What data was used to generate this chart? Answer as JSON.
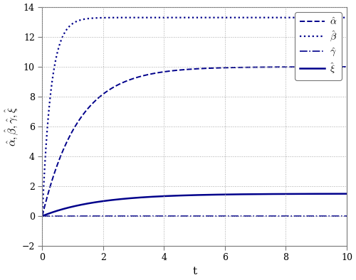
{
  "title": "",
  "xlabel": "t",
  "ylabel": "$\\hat{\\alpha}, \\hat{\\beta}, \\hat{\\gamma}, \\hat{\\xi}$",
  "xlim": [
    0,
    10
  ],
  "ylim": [
    -2,
    14
  ],
  "yticks": [
    -2,
    0,
    2,
    4,
    6,
    8,
    10,
    12,
    14
  ],
  "xticks": [
    0,
    2,
    4,
    6,
    8,
    10
  ],
  "grid_color": "#aaaaaa",
  "line_color": "#00008B",
  "background_color": "#ffffff",
  "alpha_final": 10.0,
  "beta_final": 13.3,
  "gamma_final": 0.0,
  "xi_final": 1.5,
  "alpha_rate": 0.85,
  "beta_rate": 3.5,
  "xi_rate": 0.55,
  "gamma_amplitude": -0.08,
  "gamma_decay": 4.0,
  "figsize": [
    5.0,
    3.94
  ],
  "dpi": 100
}
